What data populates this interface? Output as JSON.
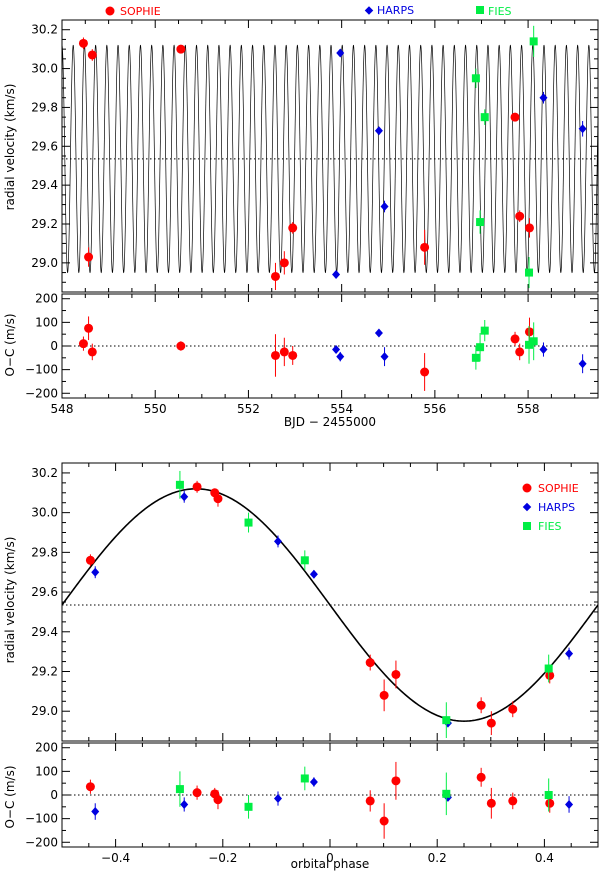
{
  "colors": {
    "sophie": "#ff0000",
    "harps": "#0000e0",
    "fies": "#00ee44",
    "axes": "#000000",
    "model": "#000000"
  },
  "chart_data": [
    {
      "id": "top-rv",
      "type": "scatter",
      "xlabel": "",
      "ylabel": "radial velocity (km/s)",
      "xlim": [
        548,
        559.5
      ],
      "ylim": [
        28.85,
        30.25
      ],
      "xticks": [
        548,
        550,
        552,
        554,
        556,
        558
      ],
      "yticks": [
        29.0,
        29.2,
        29.4,
        29.6,
        29.8,
        30.0,
        30.2
      ],
      "ytick_labels": [
        "29.0",
        "29.2",
        "29.4",
        "29.6",
        "29.8",
        "30.0",
        "30.2"
      ],
      "model": {
        "type": "sinusoid",
        "gamma": 29.535,
        "K": 0.585,
        "period_days": 0.2405,
        "t0": 548.0,
        "t_min": 548.0,
        "t_max": 559.5
      },
      "legend": {
        "placement": "top",
        "entries": [
          "SOPHIE",
          "HARPS",
          "FIES"
        ]
      },
      "series": [
        {
          "name": "SOPHIE",
          "marker": "circle",
          "points": [
            {
              "x": 548.46,
              "y": 30.13,
              "err": 0.03
            },
            {
              "x": 548.57,
              "y": 29.03,
              "err": 0.05
            },
            {
              "x": 548.65,
              "y": 30.07,
              "err": 0.03
            },
            {
              "x": 550.55,
              "y": 30.1,
              "err": 0.02
            },
            {
              "x": 552.58,
              "y": 28.93,
              "err": 0.07
            },
            {
              "x": 552.77,
              "y": 29.0,
              "err": 0.06
            },
            {
              "x": 552.95,
              "y": 29.18,
              "err": 0.03
            },
            {
              "x": 555.78,
              "y": 29.08,
              "err": 0.09
            },
            {
              "x": 557.72,
              "y": 29.75,
              "err": 0.02
            },
            {
              "x": 557.82,
              "y": 29.24,
              "err": 0.03
            },
            {
              "x": 558.03,
              "y": 29.18,
              "err": 0.05
            }
          ]
        },
        {
          "name": "HARPS",
          "marker": "diamond",
          "points": [
            {
              "x": 553.88,
              "y": 28.94,
              "err": 0.01
            },
            {
              "x": 553.97,
              "y": 30.08,
              "err": 0.02
            },
            {
              "x": 554.8,
              "y": 29.68,
              "err": 0.01
            },
            {
              "x": 554.92,
              "y": 29.29,
              "err": 0.03
            },
            {
              "x": 558.33,
              "y": 29.85,
              "err": 0.03
            },
            {
              "x": 559.17,
              "y": 29.69,
              "err": 0.04
            }
          ]
        },
        {
          "name": "FIES",
          "marker": "square",
          "points": [
            {
              "x": 556.88,
              "y": 29.95,
              "err": 0.05
            },
            {
              "x": 556.97,
              "y": 29.21,
              "err": 0.06
            },
            {
              "x": 557.07,
              "y": 29.75,
              "err": 0.04
            },
            {
              "x": 558.02,
              "y": 28.95,
              "err": 0.08
            },
            {
              "x": 558.12,
              "y": 30.14,
              "err": 0.08
            }
          ]
        }
      ]
    },
    {
      "id": "top-oc",
      "type": "scatter",
      "xlabel": "BJD − 2455000",
      "ylabel": "O−C (m/s)",
      "xlim": [
        548,
        559.5
      ],
      "ylim": [
        -220,
        220
      ],
      "xticks": [
        548,
        550,
        552,
        554,
        556,
        558
      ],
      "yticks": [
        -200,
        -100,
        0,
        100,
        200
      ],
      "ytick_labels": [
        "−200",
        "−100",
        "0",
        "100",
        "200"
      ],
      "series": [
        {
          "name": "SOPHIE",
          "marker": "circle",
          "points": [
            {
              "x": 548.46,
              "y": 10,
              "err": 30
            },
            {
              "x": 548.57,
              "y": 75,
              "err": 50
            },
            {
              "x": 548.65,
              "y": -25,
              "err": 35
            },
            {
              "x": 550.55,
              "y": 0,
              "err": 20
            },
            {
              "x": 552.58,
              "y": -40,
              "err": 90
            },
            {
              "x": 552.77,
              "y": -25,
              "err": 60
            },
            {
              "x": 552.95,
              "y": -40,
              "err": 40
            },
            {
              "x": 555.78,
              "y": -110,
              "err": 80
            },
            {
              "x": 557.72,
              "y": 30,
              "err": 30
            },
            {
              "x": 557.82,
              "y": -25,
              "err": 35
            },
            {
              "x": 558.03,
              "y": 60,
              "err": 60
            }
          ]
        },
        {
          "name": "HARPS",
          "marker": "diamond",
          "points": [
            {
              "x": 553.88,
              "y": -15,
              "err": 10
            },
            {
              "x": 553.97,
              "y": -45,
              "err": 20
            },
            {
              "x": 554.8,
              "y": 55,
              "err": 15
            },
            {
              "x": 554.92,
              "y": -45,
              "err": 40
            },
            {
              "x": 558.33,
              "y": -15,
              "err": 30
            },
            {
              "x": 559.17,
              "y": -75,
              "err": 40
            }
          ]
        },
        {
          "name": "FIES",
          "marker": "square",
          "points": [
            {
              "x": 556.88,
              "y": -50,
              "err": 50
            },
            {
              "x": 556.97,
              "y": -5,
              "err": 60
            },
            {
              "x": 557.07,
              "y": 65,
              "err": 45
            },
            {
              "x": 558.02,
              "y": 5,
              "err": 80
            },
            {
              "x": 558.12,
              "y": 20,
              "err": 80
            }
          ]
        }
      ]
    },
    {
      "id": "bottom-rv",
      "type": "scatter",
      "xlabel": "",
      "ylabel": "radial velocity (km/s)",
      "xlim": [
        -0.5,
        0.5
      ],
      "ylim": [
        28.85,
        30.25
      ],
      "xticks": [
        -0.4,
        -0.2,
        0.0,
        0.2,
        0.4
      ],
      "yticks": [
        29.0,
        29.2,
        29.4,
        29.6,
        29.8,
        30.0,
        30.2
      ],
      "ytick_labels": [
        "29.0",
        "29.2",
        "29.4",
        "29.6",
        "29.8",
        "30.0",
        "30.2"
      ],
      "model": {
        "type": "sinusoid-phase",
        "gamma": 29.535,
        "K": 0.585
      },
      "legend": {
        "placement": "top-right",
        "entries": [
          "SOPHIE",
          "HARPS",
          "FIES"
        ]
      },
      "series": [
        {
          "name": "SOPHIE",
          "marker": "circle",
          "points": [
            {
              "x": -0.447,
              "y": 29.76,
              "err": 0.03
            },
            {
              "x": -0.248,
              "y": 30.13,
              "err": 0.03
            },
            {
              "x": -0.215,
              "y": 30.1,
              "err": 0.02
            },
            {
              "x": -0.209,
              "y": 30.07,
              "err": 0.04
            },
            {
              "x": 0.075,
              "y": 29.245,
              "err": 0.04
            },
            {
              "x": 0.101,
              "y": 29.08,
              "err": 0.08
            },
            {
              "x": 0.123,
              "y": 29.185,
              "err": 0.07
            },
            {
              "x": 0.282,
              "y": 29.03,
              "err": 0.04
            },
            {
              "x": 0.301,
              "y": 28.94,
              "err": 0.06
            },
            {
              "x": 0.341,
              "y": 29.01,
              "err": 0.04
            },
            {
              "x": 0.41,
              "y": 29.18,
              "err": 0.04
            }
          ]
        },
        {
          "name": "HARPS",
          "marker": "diamond",
          "points": [
            {
              "x": -0.438,
              "y": 29.7,
              "err": 0.03
            },
            {
              "x": -0.272,
              "y": 30.08,
              "err": 0.03
            },
            {
              "x": -0.097,
              "y": 29.855,
              "err": 0.03
            },
            {
              "x": -0.03,
              "y": 29.69,
              "err": 0.02
            },
            {
              "x": 0.22,
              "y": 28.94,
              "err": 0.02
            },
            {
              "x": 0.446,
              "y": 29.29,
              "err": 0.03
            }
          ]
        },
        {
          "name": "FIES",
          "marker": "square",
          "points": [
            {
              "x": -0.28,
              "y": 30.14,
              "err": 0.07
            },
            {
              "x": -0.152,
              "y": 29.95,
              "err": 0.05
            },
            {
              "x": -0.047,
              "y": 29.76,
              "err": 0.05
            },
            {
              "x": 0.217,
              "y": 28.955,
              "err": 0.09
            },
            {
              "x": 0.408,
              "y": 29.215,
              "err": 0.07
            }
          ]
        }
      ]
    },
    {
      "id": "bottom-oc",
      "type": "scatter",
      "xlabel": "orbital phase",
      "ylabel": "O−C (m/s)",
      "xlim": [
        -0.5,
        0.5
      ],
      "ylim": [
        -220,
        220
      ],
      "xticks": [
        -0.4,
        -0.2,
        0.0,
        0.2,
        0.4
      ],
      "yticks": [
        -200,
        -100,
        0,
        100,
        200
      ],
      "ytick_labels": [
        "−200",
        "−100",
        "0",
        "100",
        "200"
      ],
      "xtick_labels": [
        "−0.4",
        "−0.2",
        "0",
        "0.2",
        "0.4"
      ],
      "series": [
        {
          "name": "SOPHIE",
          "marker": "circle",
          "points": [
            {
              "x": -0.447,
              "y": 35,
              "err": 30
            },
            {
              "x": -0.248,
              "y": 10,
              "err": 30
            },
            {
              "x": -0.215,
              "y": 5,
              "err": 25
            },
            {
              "x": -0.209,
              "y": -20,
              "err": 40
            },
            {
              "x": 0.075,
              "y": -25,
              "err": 45
            },
            {
              "x": 0.101,
              "y": -110,
              "err": 75
            },
            {
              "x": 0.123,
              "y": 60,
              "err": 80
            },
            {
              "x": 0.282,
              "y": 75,
              "err": 40
            },
            {
              "x": 0.301,
              "y": -35,
              "err": 65
            },
            {
              "x": 0.341,
              "y": -25,
              "err": 35
            },
            {
              "x": 0.41,
              "y": -35,
              "err": 40
            }
          ]
        },
        {
          "name": "HARPS",
          "marker": "diamond",
          "points": [
            {
              "x": -0.438,
              "y": -70,
              "err": 35
            },
            {
              "x": -0.272,
              "y": -40,
              "err": 30
            },
            {
              "x": -0.097,
              "y": -15,
              "err": 30
            },
            {
              "x": -0.03,
              "y": 55,
              "err": 20
            },
            {
              "x": 0.22,
              "y": -10,
              "err": 15
            },
            {
              "x": 0.446,
              "y": -40,
              "err": 35
            }
          ]
        },
        {
          "name": "FIES",
          "marker": "square",
          "points": [
            {
              "x": -0.28,
              "y": 25,
              "err": 75
            },
            {
              "x": -0.152,
              "y": -50,
              "err": 50
            },
            {
              "x": -0.047,
              "y": 70,
              "err": 50
            },
            {
              "x": 0.217,
              "y": 5,
              "err": 90
            },
            {
              "x": 0.408,
              "y": 0,
              "err": 70
            }
          ]
        }
      ]
    }
  ]
}
